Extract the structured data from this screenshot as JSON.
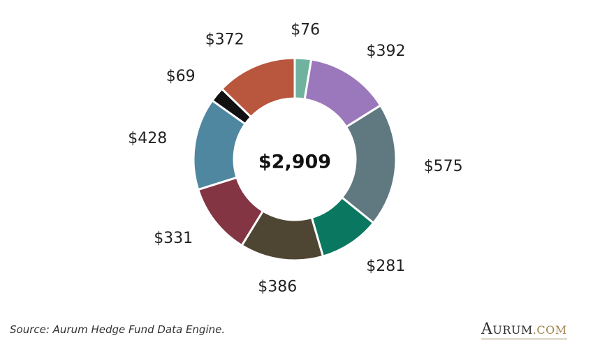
{
  "chart_data": {
    "type": "pie",
    "donut": true,
    "center_label": "$2,909",
    "slices": [
      {
        "value": 76,
        "label": "$76",
        "color": "#6fb39e"
      },
      {
        "value": 392,
        "label": "$392",
        "color": "#9b78bb"
      },
      {
        "value": 575,
        "label": "$575",
        "color": "#607880"
      },
      {
        "value": 281,
        "label": "$281",
        "color": "#0a7860"
      },
      {
        "value": 386,
        "label": "$386",
        "color": "#4e4632"
      },
      {
        "value": 331,
        "label": "$331",
        "color": "#833544"
      },
      {
        "value": 428,
        "label": "$428",
        "color": "#4f87a0"
      },
      {
        "value": 69,
        "label": "$69",
        "color": "#111111"
      },
      {
        "value": 372,
        "label": "$372",
        "color": "#b9563e"
      }
    ]
  },
  "footer": {
    "source": "Source: Aurum Hedge Fund Data Engine.",
    "brand_a": "A",
    "brand_urum": "URUM",
    "brand_dom": ".COM"
  }
}
